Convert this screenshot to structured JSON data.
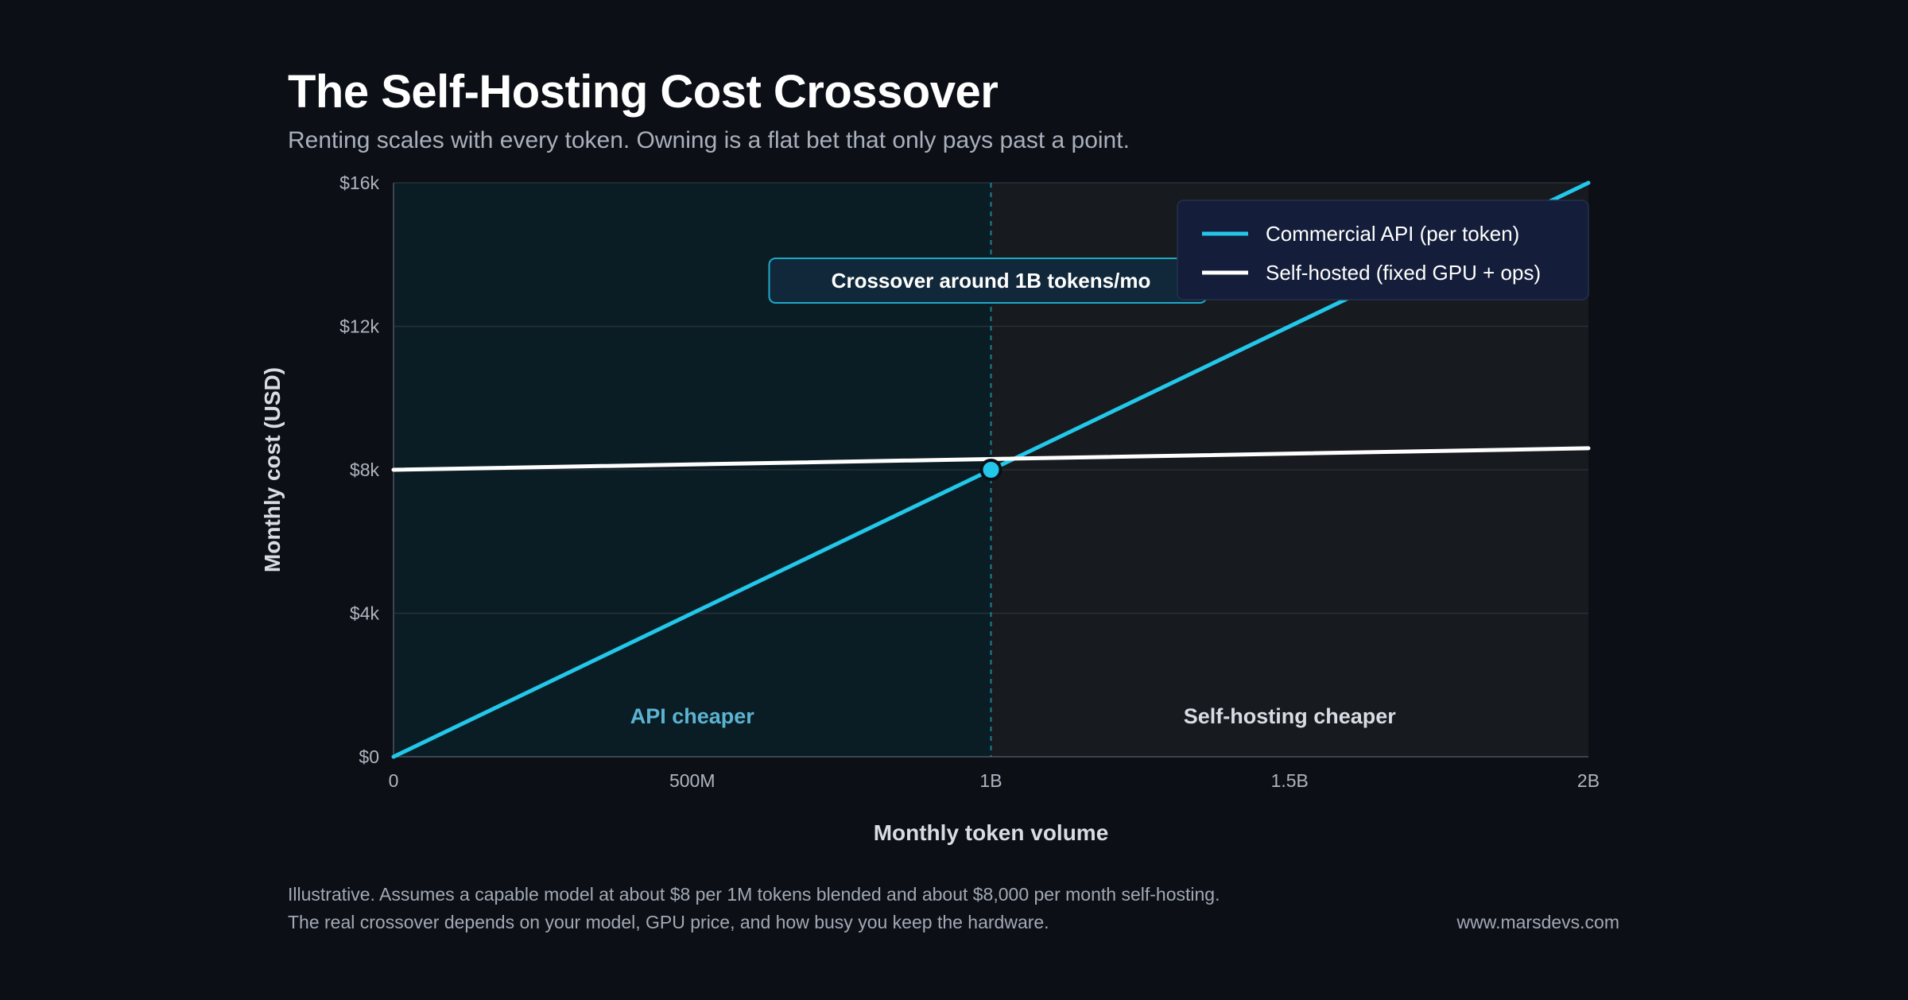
{
  "header": {
    "title": "The Self-Hosting Cost Crossover",
    "subtitle": "Renting scales with every token. Owning is a flat bet that only pays past a point."
  },
  "chart_data": {
    "type": "line",
    "xlabel": "Monthly token volume",
    "ylabel": "Monthly cost (USD)",
    "xlim": [
      0,
      2000000000
    ],
    "ylim": [
      0,
      16000
    ],
    "x_ticks": [
      {
        "value": 0,
        "label": "0"
      },
      {
        "value": 500000000,
        "label": "500M"
      },
      {
        "value": 1000000000,
        "label": "1B"
      },
      {
        "value": 1500000000,
        "label": "1.5B"
      },
      {
        "value": 2000000000,
        "label": "2B"
      }
    ],
    "y_ticks": [
      {
        "value": 0,
        "label": "$0"
      },
      {
        "value": 4000,
        "label": "$4k"
      },
      {
        "value": 8000,
        "label": "$8k"
      },
      {
        "value": 12000,
        "label": "$12k"
      },
      {
        "value": 16000,
        "label": "$16k"
      }
    ],
    "grid": true,
    "legend_position": "top-right",
    "series": [
      {
        "name": "Commercial API (per token)",
        "color": "#22c7ea",
        "points": [
          [
            0,
            0
          ],
          [
            2000000000,
            16000
          ]
        ]
      },
      {
        "name": "Self-hosted (fixed GPU + ops)",
        "color": "#ffffff",
        "points": [
          [
            0,
            8000
          ],
          [
            2000000000,
            8600
          ]
        ]
      }
    ],
    "crossover": {
      "x": 1000000000,
      "y": 8000,
      "label": "Crossover around 1B tokens/mo"
    },
    "regions": [
      {
        "label": "API cheaper",
        "x_range": [
          0,
          1000000000
        ],
        "color": "#0b1d24",
        "text_color": "#5bb4d2"
      },
      {
        "label": "Self-hosting cheaper",
        "x_range": [
          1000000000,
          2000000000
        ],
        "color": "#171a1e",
        "text_color": "#d8dde5"
      }
    ]
  },
  "footer": {
    "note_line1": "Illustrative. Assumes a capable model at about $8 per 1M tokens blended and about $8,000 per month self-hosting.",
    "note_line2": "The real crossover depends on your model, GPU price, and how busy you keep the hardware.",
    "site": "www.marsdevs.com"
  },
  "colors": {
    "background": "#0c0f16",
    "api_line": "#22c7ea",
    "self_hosted_line": "#ffffff",
    "legend_bg": "#141e3a",
    "annotation_bg": "#10283a"
  }
}
